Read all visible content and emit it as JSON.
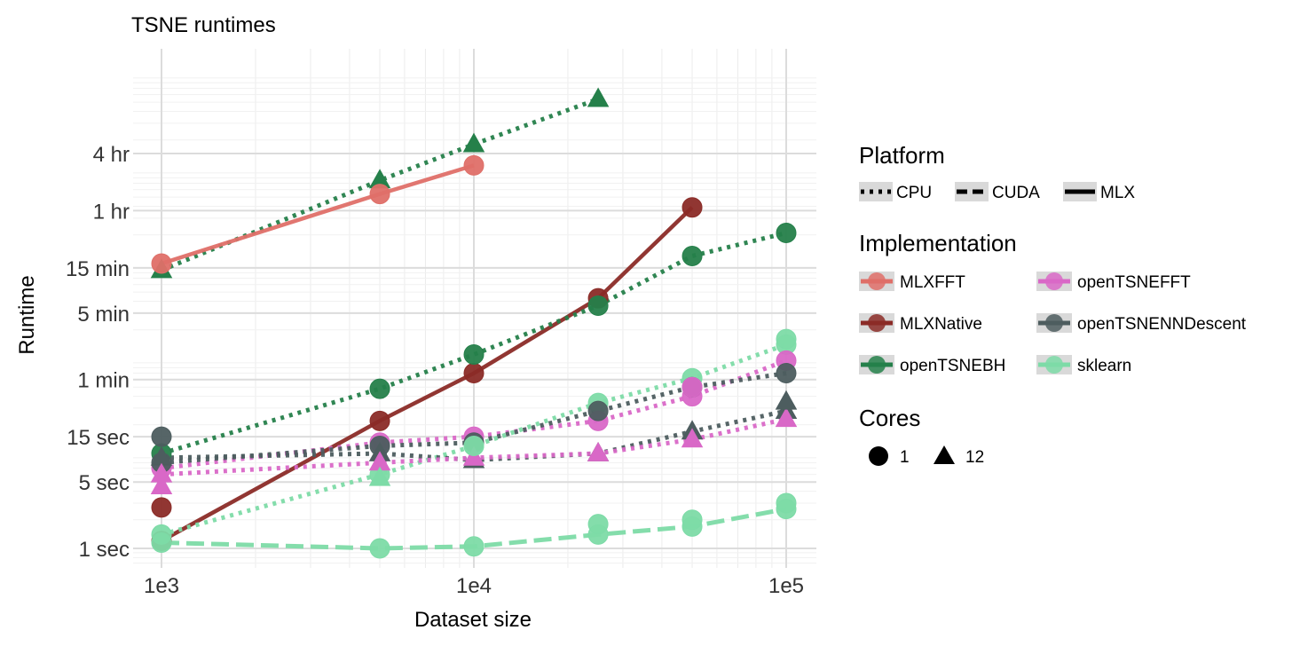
{
  "chart_data": {
    "type": "line",
    "title": "TSNE runtimes",
    "xlabel": "Dataset size",
    "ylabel": "Runtime",
    "x_scale": "log10",
    "y_scale": "log10",
    "xlim": [
      1000,
      100000
    ],
    "ylim_seconds": [
      0.8,
      86400
    ],
    "x_ticks": [
      {
        "value": 1000,
        "label": "1e3"
      },
      {
        "value": 10000,
        "label": "1e4"
      },
      {
        "value": 100000,
        "label": "1e5"
      }
    ],
    "y_ticks": [
      {
        "value": 1,
        "label": "1 sec"
      },
      {
        "value": 5,
        "label": "5 sec"
      },
      {
        "value": 15,
        "label": "15 sec"
      },
      {
        "value": 60,
        "label": "1 min"
      },
      {
        "value": 300,
        "label": "5 min"
      },
      {
        "value": 900,
        "label": "15 min"
      },
      {
        "value": 3600,
        "label": "1 hr"
      },
      {
        "value": 14400,
        "label": "4 hr"
      }
    ],
    "grid": true,
    "legend_position": "right",
    "legends": {
      "platform": {
        "title": "Platform",
        "items": [
          {
            "label": "CPU",
            "dash": "dotted"
          },
          {
            "label": "CUDA",
            "dash": "dashed"
          },
          {
            "label": "MLX",
            "dash": "solid"
          }
        ]
      },
      "implementation": {
        "title": "Implementation",
        "items": [
          {
            "label": "MLXFFT",
            "color": "#df6f68"
          },
          {
            "label": "openTSNEFFT",
            "color": "#d968c7"
          },
          {
            "label": "MLXNative",
            "color": "#8b2b27"
          },
          {
            "label": "openTSNENNDescent",
            "color": "#4d5d5f"
          },
          {
            "label": "openTSNEBH",
            "color": "#25804a"
          },
          {
            "label": "sklearn",
            "color": "#7ddba7"
          }
        ]
      },
      "cores": {
        "title": "Cores",
        "items": [
          {
            "label": "1",
            "shape": "circle"
          },
          {
            "label": "12",
            "shape": "triangle"
          }
        ]
      }
    },
    "series": [
      {
        "implementation": "openTSNEBH",
        "platform": "CPU",
        "cores": 12,
        "x": [
          1000,
          5000,
          10000,
          25000
        ],
        "y": [
          850,
          7500,
          18000,
          54000
        ]
      },
      {
        "implementation": "MLXFFT",
        "platform": "MLX",
        "cores": 1,
        "x": [
          1000,
          5000,
          10000
        ],
        "y": [
          1000,
          5400,
          10800
        ]
      },
      {
        "implementation": "MLXNative",
        "platform": "MLX",
        "cores": 1,
        "x": [
          1000,
          5000,
          10000,
          25000,
          50000
        ],
        "y": [
          1.2,
          22,
          70,
          430,
          3900
        ]
      },
      {
        "implementation": "openTSNEBH",
        "platform": "CPU",
        "cores": 1,
        "x": [
          1000,
          5000,
          10000,
          25000,
          50000,
          100000
        ],
        "y": [
          10,
          48,
          110,
          360,
          1200,
          2100
        ]
      },
      {
        "implementation": "sklearn",
        "platform": "CPU",
        "cores": 1,
        "x": [
          1000,
          5000,
          10000,
          25000,
          50000,
          100000
        ],
        "y": [
          1.4,
          6,
          12,
          34,
          62,
          140
        ]
      },
      {
        "implementation": "openTSNEFFT",
        "platform": "CPU",
        "cores": 1,
        "x": [
          1000,
          5000,
          10000,
          25000,
          50000,
          100000
        ],
        "y": [
          7,
          13,
          15,
          22,
          40,
          95
        ]
      },
      {
        "implementation": "openTSNENNDescent",
        "platform": "CPU",
        "cores": 1,
        "x": [
          1000,
          5000,
          10000,
          25000,
          50000,
          100000
        ],
        "y": [
          8,
          12,
          13,
          28,
          50,
          70
        ]
      },
      {
        "implementation": "openTSNENNDescent",
        "platform": "CPU",
        "cores": 12,
        "x": [
          1000,
          5000,
          10000,
          25000,
          50000,
          100000
        ],
        "y": [
          9,
          10,
          8.5,
          10,
          17,
          28
        ]
      },
      {
        "implementation": "openTSNEFFT",
        "platform": "CPU",
        "cores": 12,
        "x": [
          1000,
          5000,
          10000,
          25000,
          50000,
          100000
        ],
        "y": [
          6,
          8,
          9,
          10,
          14,
          23
        ]
      },
      {
        "implementation": "sklearn",
        "platform": "CUDA",
        "cores": 1,
        "x": [
          1000,
          5000,
          10000,
          25000,
          50000,
          100000
        ],
        "y": [
          1.15,
          1.0,
          1.05,
          1.4,
          1.7,
          2.6
        ]
      }
    ],
    "extra_points": [
      {
        "implementation": "MLXNative",
        "cores": 1,
        "x": 1000,
        "y": 2.7
      },
      {
        "implementation": "openTSNENNDescent",
        "cores": 1,
        "x": 1000,
        "y": 15
      },
      {
        "implementation": "openTSNEFFT",
        "cores": 12,
        "x": 1000,
        "y": 4.5
      },
      {
        "implementation": "sklearn",
        "cores": 12,
        "x": 5000,
        "y": 5.5
      },
      {
        "implementation": "sklearn",
        "cores": 1,
        "x": 10000,
        "y": 12
      },
      {
        "implementation": "sklearn",
        "cores": 1,
        "x": 25000,
        "y": 1.8
      },
      {
        "implementation": "sklearn",
        "cores": 1,
        "x": 50000,
        "y": 2.0
      },
      {
        "implementation": "sklearn",
        "cores": 1,
        "x": 100000,
        "y": 3.0
      },
      {
        "implementation": "sklearn",
        "cores": 1,
        "x": 100000,
        "y": 160
      },
      {
        "implementation": "openTSNEFFT",
        "cores": 1,
        "x": 50000,
        "y": 50
      },
      {
        "implementation": "openTSNENNDescent",
        "cores": 12,
        "x": 100000,
        "y": 35
      }
    ]
  }
}
